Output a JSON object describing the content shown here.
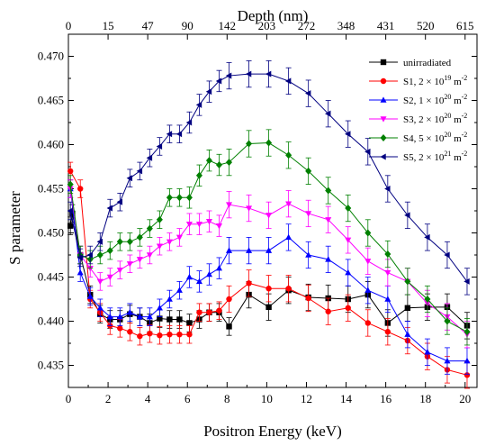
{
  "chart_data": {
    "type": "line",
    "xlabel": "Positron Energy (keV)",
    "ylabel": "S parameter",
    "x2label": "Depth (nm)",
    "xlim": [
      0,
      20.6
    ],
    "ylim": [
      0.4325,
      0.4725
    ],
    "x_ticks": [
      0,
      2,
      4,
      6,
      8,
      10,
      12,
      14,
      16,
      18,
      20
    ],
    "y_ticks": [
      0.435,
      0.44,
      0.445,
      0.45,
      0.455,
      0.46,
      0.465,
      0.47
    ],
    "y_tick_labels": [
      "0.435",
      "0.440",
      "0.445",
      "0.450",
      "0.455",
      "0.460",
      "0.465",
      "0.470"
    ],
    "top_axis_ticks": [
      {
        "energy": 0,
        "label": "0"
      },
      {
        "energy": 2,
        "label": "15"
      },
      {
        "energy": 4,
        "label": "47"
      },
      {
        "energy": 6,
        "label": "90"
      },
      {
        "energy": 8,
        "label": "142"
      },
      {
        "energy": 10,
        "label": "203"
      },
      {
        "energy": 12,
        "label": "272"
      },
      {
        "energy": 14,
        "label": "348"
      },
      {
        "energy": 16,
        "label": "431"
      },
      {
        "energy": 18,
        "label": "520"
      },
      {
        "energy": 20,
        "label": "615"
      }
    ],
    "legend_position": "top-right",
    "grid": false,
    "series": [
      {
        "name": "unirradiated",
        "color": "#000000",
        "marker": "square",
        "x": [
          0.1,
          0.2,
          0.6,
          1.1,
          1.6,
          2.1,
          2.6,
          3.1,
          3.6,
          4.1,
          4.6,
          5.1,
          5.6,
          6.1,
          6.6,
          7.1,
          7.6,
          8.1,
          9.1,
          10.1,
          11.1,
          12.1,
          13.1,
          14.1,
          15.1,
          16.1,
          17.1,
          18.1,
          19.1,
          20.1
        ],
        "y": [
          0.4508,
          0.4522,
          0.4475,
          0.443,
          0.4408,
          0.4402,
          0.4402,
          0.4408,
          0.4405,
          0.4398,
          0.4403,
          0.4402,
          0.4402,
          0.4398,
          0.4402,
          0.441,
          0.441,
          0.4394,
          0.443,
          0.4416,
          0.4435,
          0.4427,
          0.4426,
          0.4425,
          0.443,
          0.4398,
          0.4415,
          0.4416,
          0.4416,
          0.4395
        ],
        "err": [
          0.001,
          0.001,
          0.001,
          0.001,
          0.001,
          0.001,
          0.001,
          0.001,
          0.001,
          0.001,
          0.001,
          0.001,
          0.001,
          0.001,
          0.001,
          0.001,
          0.001,
          0.001,
          0.0015,
          0.0015,
          0.0015,
          0.0015,
          0.0015,
          0.0015,
          0.0015,
          0.0015,
          0.0015,
          0.0015,
          0.0015,
          0.0015
        ]
      },
      {
        "name": "S1, 2 × 10^19 m^-2",
        "label_main": "S1, 2 × 10",
        "label_exp": "19",
        "label_unit": "m",
        "label_unit_exp": "-2",
        "color": "#ff0000",
        "marker": "circle",
        "x": [
          0.1,
          0.6,
          1.1,
          1.6,
          2.1,
          2.6,
          3.1,
          3.6,
          4.1,
          4.6,
          5.1,
          5.6,
          6.1,
          6.6,
          7.1,
          7.6,
          8.1,
          9.1,
          10.1,
          11.1,
          12.1,
          13.1,
          14.1,
          15.1,
          16.1,
          17.1,
          18.1,
          19.1,
          20.1
        ],
        "y": [
          0.457,
          0.455,
          0.4425,
          0.441,
          0.4395,
          0.4392,
          0.4388,
          0.4383,
          0.4386,
          0.4384,
          0.4385,
          0.4385,
          0.4385,
          0.441,
          0.441,
          0.4412,
          0.4425,
          0.4443,
          0.4437,
          0.4437,
          0.4426,
          0.4411,
          0.4415,
          0.4398,
          0.4388,
          0.4378,
          0.436,
          0.4345,
          0.4339
        ],
        "err": [
          0.001,
          0.001,
          0.001,
          0.001,
          0.001,
          0.001,
          0.001,
          0.001,
          0.001,
          0.001,
          0.001,
          0.001,
          0.001,
          0.001,
          0.001,
          0.001,
          0.0015,
          0.0015,
          0.0015,
          0.0015,
          0.0015,
          0.0015,
          0.0015,
          0.0015,
          0.0015,
          0.0015,
          0.0015,
          0.0015,
          0.0015
        ]
      },
      {
        "name": "S2, 1 × 10^20 m^-2",
        "label_main": "S2, 1 × 10",
        "label_exp": "20",
        "label_unit": "m",
        "label_unit_exp": "-2",
        "color": "#0000ff",
        "marker": "triangle-up",
        "x": [
          0.1,
          0.6,
          1.1,
          1.6,
          2.1,
          2.6,
          3.1,
          3.6,
          4.1,
          4.6,
          5.1,
          5.6,
          6.1,
          6.6,
          7.1,
          7.6,
          8.1,
          9.1,
          10.1,
          11.1,
          12.1,
          13.1,
          14.1,
          15.1,
          16.1,
          17.1,
          18.1,
          19.1,
          20.1
        ],
        "y": [
          0.455,
          0.4455,
          0.4428,
          0.4415,
          0.4405,
          0.4405,
          0.441,
          0.4405,
          0.4405,
          0.4415,
          0.4425,
          0.4435,
          0.445,
          0.4445,
          0.4453,
          0.446,
          0.448,
          0.448,
          0.448,
          0.4495,
          0.4475,
          0.447,
          0.4455,
          0.4435,
          0.4425,
          0.4385,
          0.4365,
          0.4355,
          0.4355
        ],
        "err": [
          0.001,
          0.001,
          0.001,
          0.001,
          0.001,
          0.001,
          0.001,
          0.001,
          0.001,
          0.001,
          0.001,
          0.001,
          0.0012,
          0.0012,
          0.0012,
          0.0012,
          0.0015,
          0.0015,
          0.0015,
          0.0015,
          0.0015,
          0.0015,
          0.0015,
          0.0015,
          0.0015,
          0.0015,
          0.0015,
          0.0015,
          0.0015
        ]
      },
      {
        "name": "S3, 2 × 10^20 m^-2",
        "label_main": "S3, 2 × 10",
        "label_exp": "20",
        "label_unit": "m",
        "label_unit_exp": "-2",
        "color": "#ff00ff",
        "marker": "triangle-down",
        "x": [
          0.1,
          0.6,
          1.1,
          1.6,
          2.1,
          2.6,
          3.1,
          3.6,
          4.1,
          4.6,
          5.1,
          5.6,
          6.1,
          6.6,
          7.1,
          7.6,
          8.1,
          9.1,
          10.1,
          11.1,
          12.1,
          13.1,
          14.1,
          15.1,
          16.1,
          17.1,
          18.1,
          19.1,
          20.1
        ],
        "y": [
          0.455,
          0.4475,
          0.446,
          0.4445,
          0.445,
          0.4458,
          0.4465,
          0.447,
          0.4475,
          0.4485,
          0.449,
          0.4495,
          0.451,
          0.451,
          0.4513,
          0.4508,
          0.4532,
          0.4528,
          0.452,
          0.4533,
          0.4522,
          0.4515,
          0.4492,
          0.4468,
          0.4455,
          0.4445,
          0.442,
          0.4405,
          0.4385
        ],
        "err": [
          0.001,
          0.001,
          0.001,
          0.001,
          0.001,
          0.001,
          0.001,
          0.001,
          0.001,
          0.001,
          0.001,
          0.001,
          0.0012,
          0.0012,
          0.0012,
          0.0012,
          0.0015,
          0.0015,
          0.0015,
          0.0015,
          0.0015,
          0.0015,
          0.0015,
          0.0015,
          0.0015,
          0.0015,
          0.0015,
          0.0015,
          0.0015
        ]
      },
      {
        "name": "S4, 5 × 10^20 m^-2",
        "label_main": "S4, 5 × 10",
        "label_exp": "20",
        "label_unit": "m",
        "label_unit_exp": "-2",
        "color": "#008000",
        "marker": "diamond",
        "x": [
          0.1,
          0.6,
          1.1,
          1.6,
          2.1,
          2.6,
          3.1,
          3.6,
          4.1,
          4.6,
          5.1,
          5.6,
          6.1,
          6.6,
          7.1,
          7.6,
          8.1,
          9.1,
          10.1,
          11.1,
          12.1,
          13.1,
          14.1,
          15.1,
          16.1,
          17.1,
          18.1,
          19.1,
          20.1
        ],
        "y": [
          0.4555,
          0.4475,
          0.447,
          0.4475,
          0.448,
          0.449,
          0.449,
          0.4495,
          0.4505,
          0.4515,
          0.454,
          0.454,
          0.454,
          0.4565,
          0.4582,
          0.4577,
          0.458,
          0.4601,
          0.4602,
          0.4588,
          0.457,
          0.4548,
          0.4528,
          0.45,
          0.4476,
          0.4445,
          0.4425,
          0.44,
          0.4388
        ],
        "err": [
          0.001,
          0.001,
          0.001,
          0.001,
          0.001,
          0.001,
          0.001,
          0.001,
          0.001,
          0.001,
          0.001,
          0.001,
          0.0012,
          0.0012,
          0.0012,
          0.0012,
          0.0015,
          0.0015,
          0.0015,
          0.0015,
          0.0015,
          0.0015,
          0.0015,
          0.0015,
          0.0015,
          0.0015,
          0.0015,
          0.0015,
          0.0015
        ]
      },
      {
        "name": "S5, 2 × 10^21 m^-2",
        "label_main": "S5, 2 × 10",
        "label_exp": "21",
        "label_unit": "m",
        "label_unit_exp": "-2",
        "color": "#000080",
        "marker": "triangle-left",
        "x": [
          0.1,
          0.6,
          1.1,
          1.6,
          2.1,
          2.6,
          3.1,
          3.6,
          4.1,
          4.6,
          5.1,
          5.6,
          6.1,
          6.6,
          7.1,
          7.6,
          8.1,
          9.1,
          10.1,
          11.1,
          12.1,
          13.1,
          14.1,
          15.1,
          16.1,
          17.1,
          18.1,
          19.1,
          20.1
        ],
        "y": [
          0.4525,
          0.4472,
          0.4475,
          0.449,
          0.4528,
          0.4535,
          0.4562,
          0.457,
          0.4585,
          0.4598,
          0.4612,
          0.4612,
          0.4625,
          0.4645,
          0.466,
          0.4672,
          0.4678,
          0.468,
          0.468,
          0.4672,
          0.4658,
          0.4635,
          0.4612,
          0.4592,
          0.455,
          0.452,
          0.4495,
          0.4475,
          0.4445
        ],
        "err": [
          0.001,
          0.001,
          0.001,
          0.001,
          0.001,
          0.001,
          0.001,
          0.001,
          0.001,
          0.001,
          0.001,
          0.001,
          0.0012,
          0.0012,
          0.0012,
          0.0012,
          0.0015,
          0.0015,
          0.0015,
          0.0015,
          0.0015,
          0.0015,
          0.0015,
          0.0015,
          0.0015,
          0.0015,
          0.0015,
          0.0015,
          0.0015
        ]
      }
    ]
  }
}
